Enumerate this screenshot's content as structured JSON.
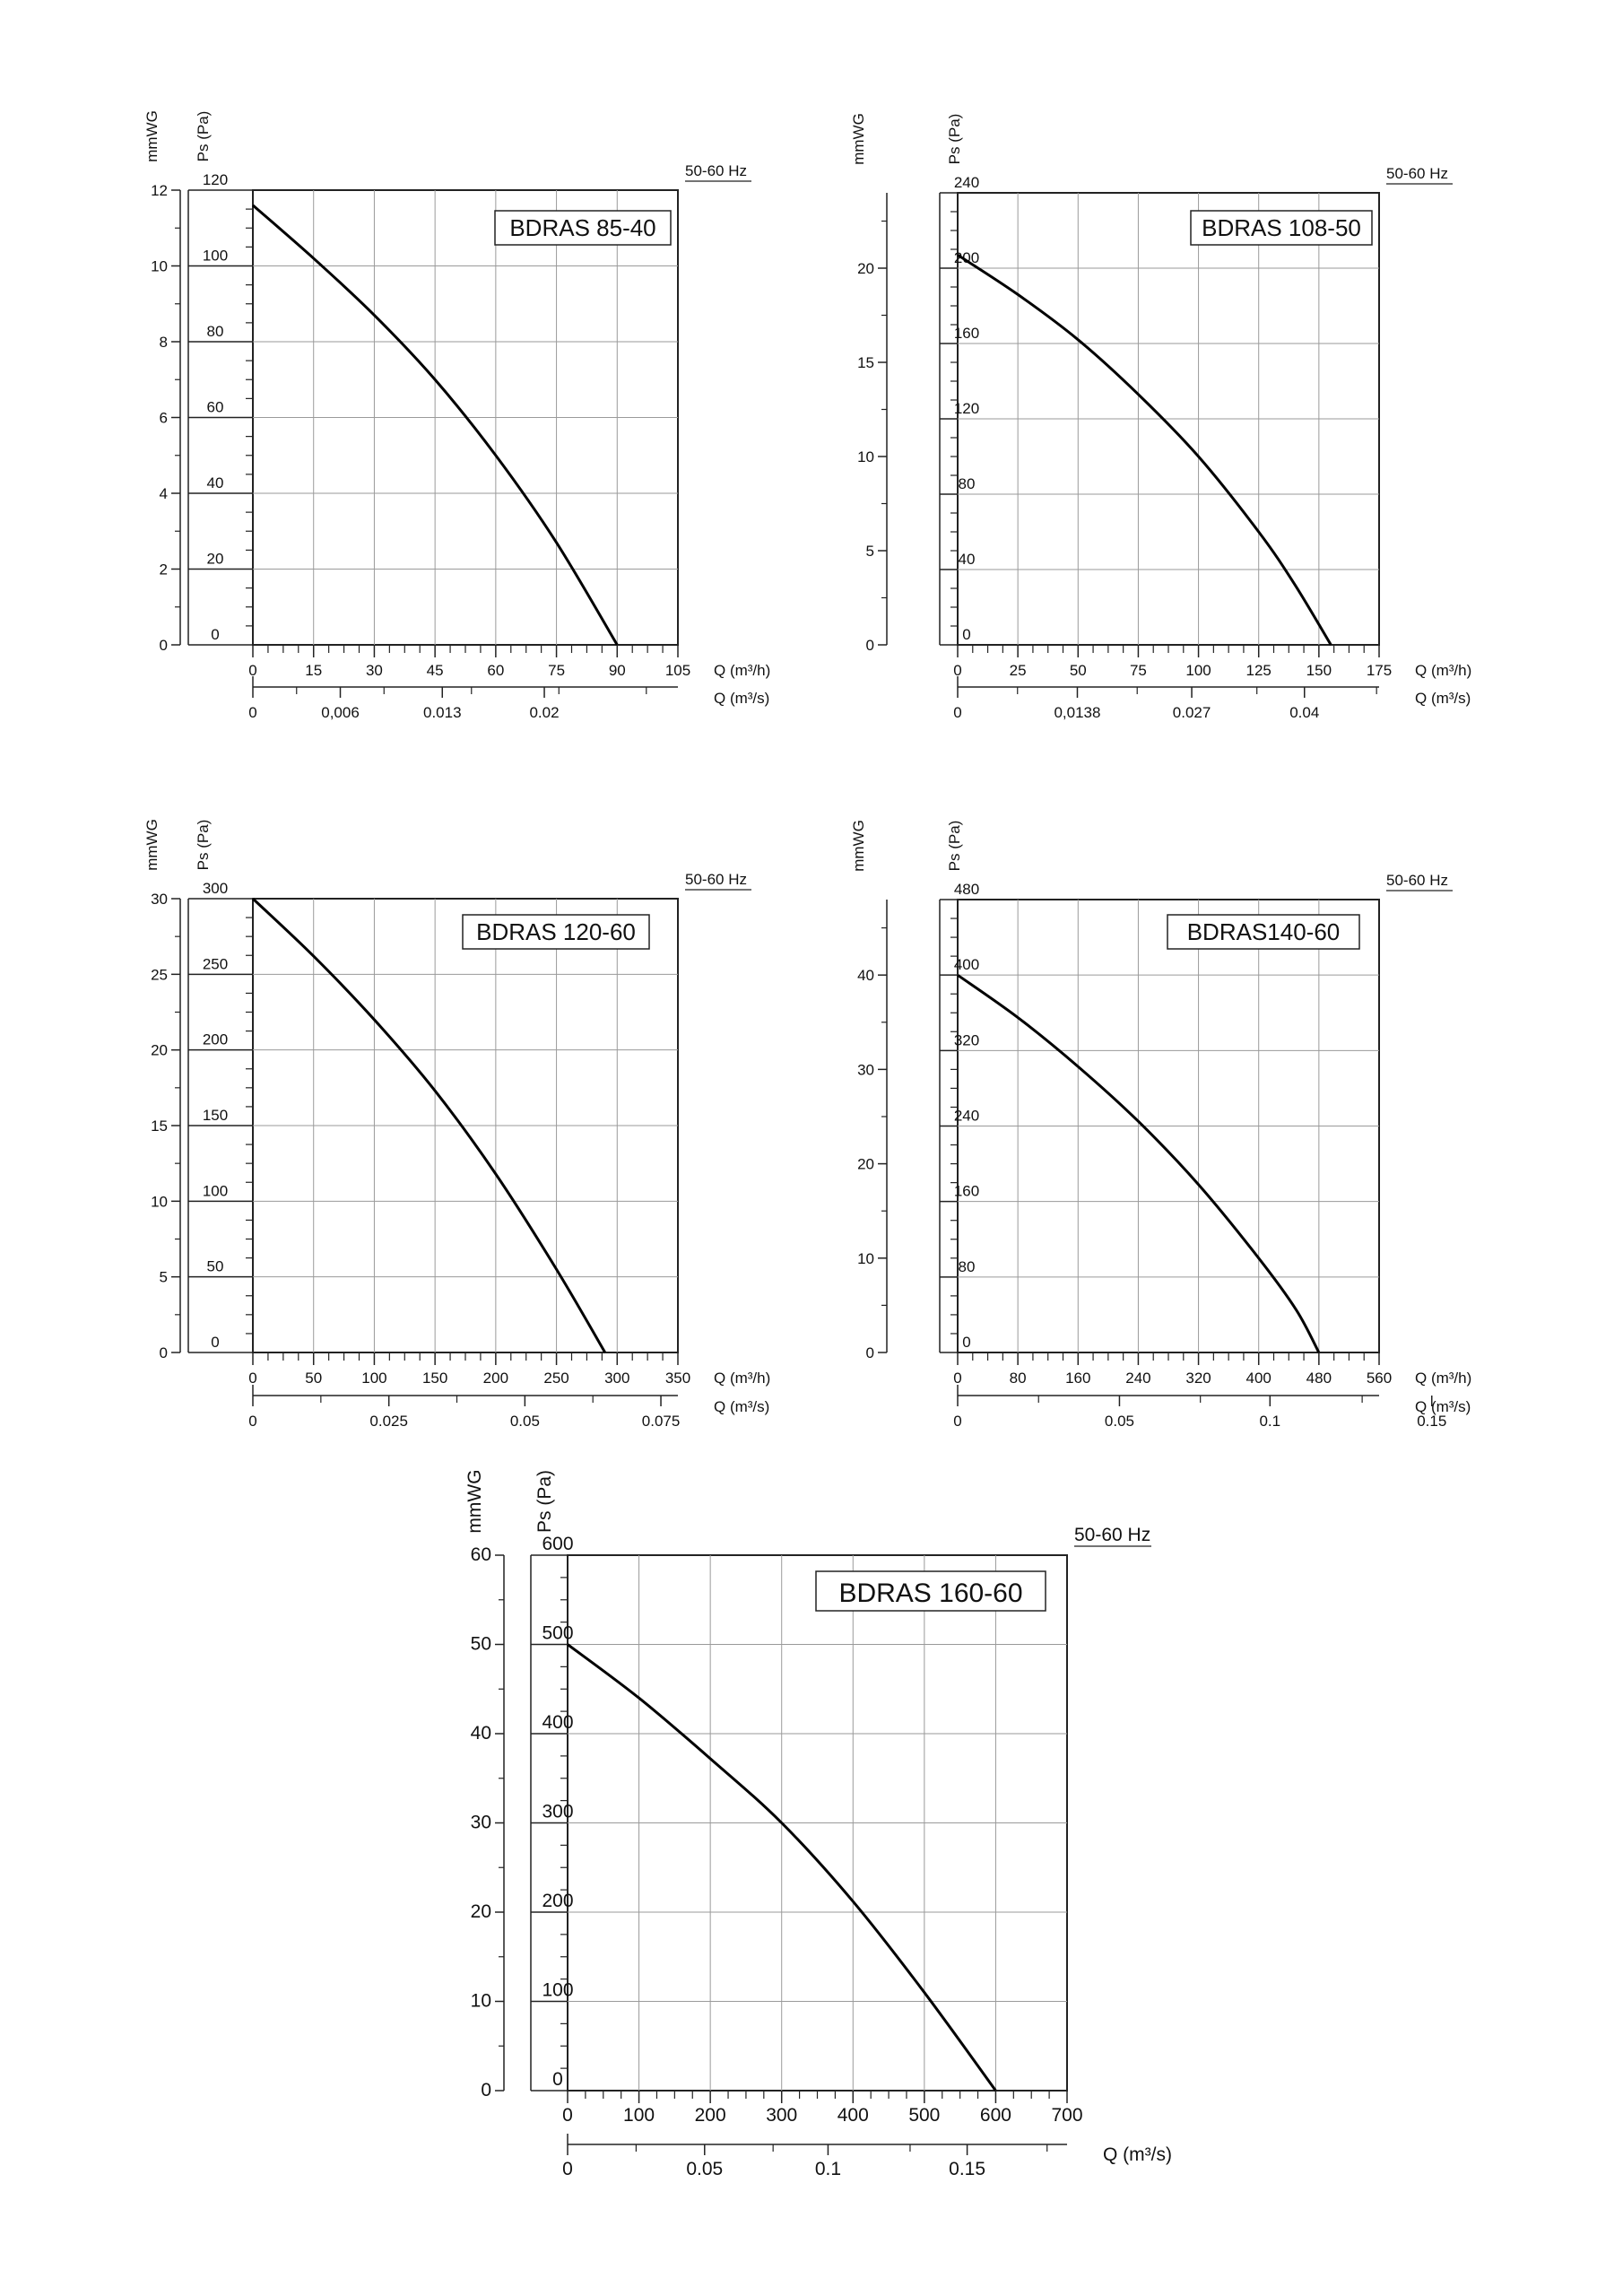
{
  "chart_data": [
    {
      "type": "line",
      "title": "BDRAS 85-40",
      "frequency_label": "50-60 Hz",
      "xlabel": "Q (m³/h)",
      "xlabel2": "Q (m³/s)",
      "ylabel": "Ps (Pa)",
      "ylabel2": "mmWG",
      "xlim": [
        0,
        105
      ],
      "ylim": [
        0,
        120
      ],
      "y2lim": [
        0,
        12
      ],
      "x_ticks": [
        "0",
        "15",
        "30",
        "45",
        "60",
        "75",
        "90",
        "105"
      ],
      "y_ticks": [
        "0",
        "20",
        "40",
        "60",
        "80",
        "100",
        "120"
      ],
      "y2_ticks": [
        "0",
        "2",
        "4",
        "6",
        "8",
        "10",
        "12"
      ],
      "x2_ticks": [
        {
          "q": 0,
          "label": "0"
        },
        {
          "q": 21.6,
          "label": "0,006"
        },
        {
          "q": 46.8,
          "label": "0.013"
        },
        {
          "q": 72,
          "label": "0.02"
        }
      ],
      "grid": true,
      "series": [
        {
          "x": [
            0,
            15,
            30,
            45,
            60,
            75,
            90
          ],
          "y": [
            116,
            102,
            87,
            70,
            50,
            27,
            0
          ]
        }
      ]
    },
    {
      "type": "line",
      "title": "BDRAS 108-50",
      "frequency_label": "50-60 Hz",
      "xlabel": "Q (m³/h)",
      "xlabel2": "Q (m³/s)",
      "ylabel": "Ps (Pa)",
      "ylabel2": "mmWG",
      "xlim": [
        0,
        175
      ],
      "ylim": [
        0,
        240
      ],
      "y2lim": [
        0,
        24
      ],
      "x_ticks": [
        "0",
        "25",
        "50",
        "75",
        "100",
        "125",
        "150",
        "175"
      ],
      "y_ticks": [
        "0",
        "40",
        "80",
        "120",
        "160",
        "200",
        "240"
      ],
      "y2_ticks": [
        "0",
        "5",
        "10",
        "15",
        "20"
      ],
      "x2_ticks": [
        {
          "q": 0,
          "label": "0"
        },
        {
          "q": 49.7,
          "label": "0,0138"
        },
        {
          "q": 97.2,
          "label": "0.027"
        },
        {
          "q": 144,
          "label": "0.04"
        }
      ],
      "grid": true,
      "series": [
        {
          "x": [
            0,
            25,
            50,
            75,
            100,
            125,
            140,
            155
          ],
          "y": [
            207,
            186,
            162,
            133,
            100,
            60,
            32,
            0
          ]
        }
      ]
    },
    {
      "type": "line",
      "title": "BDRAS 120-60",
      "frequency_label": "50-60 Hz",
      "xlabel": "Q (m³/h)",
      "xlabel2": "Q (m³/s)",
      "ylabel": "Ps (Pa)",
      "ylabel2": "mmWG",
      "xlim": [
        0,
        350
      ],
      "ylim": [
        0,
        300
      ],
      "y2lim": [
        0,
        30
      ],
      "x_ticks": [
        "0",
        "50",
        "100",
        "150",
        "200",
        "250",
        "300",
        "350"
      ],
      "y_ticks": [
        "0",
        "50",
        "100",
        "150",
        "200",
        "250",
        "300"
      ],
      "y2_ticks": [
        "0",
        "5",
        "10",
        "15",
        "20",
        "25",
        "30"
      ],
      "x2_ticks": [
        {
          "q": 0,
          "label": "0"
        },
        {
          "q": 112,
          "label": "0.025"
        },
        {
          "q": 224,
          "label": "0.05"
        },
        {
          "q": 336,
          "label": "0.075"
        }
      ],
      "grid": true,
      "series": [
        {
          "x": [
            0,
            50,
            100,
            150,
            200,
            250,
            290
          ],
          "y": [
            300,
            262,
            220,
            173,
            118,
            55,
            0
          ]
        }
      ]
    },
    {
      "type": "line",
      "title": "BDRAS140-60",
      "frequency_label": "50-60 Hz",
      "xlabel": "Q (m³/h)",
      "xlabel2": "Q (m³/s)",
      "ylabel": "Ps (Pa)",
      "ylabel2": "mmWG",
      "xlim": [
        0,
        560
      ],
      "ylim": [
        0,
        480
      ],
      "y2lim": [
        0,
        48
      ],
      "x_ticks": [
        "0",
        "80",
        "160",
        "240",
        "320",
        "400",
        "480",
        "560"
      ],
      "y_ticks": [
        "0",
        "80",
        "160",
        "240",
        "320",
        "400",
        "480"
      ],
      "y2_ticks": [
        "0",
        "10",
        "20",
        "30",
        "40"
      ],
      "x2_ticks": [
        {
          "q": 0,
          "label": "0"
        },
        {
          "q": 215,
          "label": "0.05"
        },
        {
          "q": 415,
          "label": "0.1"
        },
        {
          "q": 630,
          "label": "0.15"
        }
      ],
      "grid": true,
      "series": [
        {
          "x": [
            0,
            80,
            160,
            240,
            320,
            400,
            450,
            480
          ],
          "y": [
            400,
            355,
            303,
            245,
            178,
            100,
            45,
            0
          ]
        }
      ]
    },
    {
      "type": "line",
      "title": "BDRAS 160-60",
      "frequency_label": "50-60 Hz",
      "xlabel": "",
      "xlabel2": "Q (m³/s)",
      "ylabel": "Ps (Pa)",
      "ylabel2": "mmWG",
      "xlim": [
        0,
        700
      ],
      "ylim": [
        0,
        600
      ],
      "y2lim": [
        0,
        60
      ],
      "x_ticks": [
        "0",
        "100",
        "200",
        "300",
        "400",
        "500",
        "600",
        "700"
      ],
      "y_ticks": [
        "0",
        "100",
        "200",
        "300",
        "400",
        "500",
        "600"
      ],
      "y2_ticks": [
        "0",
        "10",
        "20",
        "30",
        "40",
        "50",
        "60"
      ],
      "x2_ticks": [
        {
          "q": 0,
          "label": "0"
        },
        {
          "q": 192,
          "label": "0.05"
        },
        {
          "q": 365,
          "label": "0.1"
        },
        {
          "q": 560,
          "label": "0.15"
        }
      ],
      "grid": true,
      "series": [
        {
          "x": [
            0,
            100,
            200,
            300,
            400,
            500,
            600
          ],
          "y": [
            500,
            440,
            372,
            300,
            212,
            110,
            0
          ]
        }
      ]
    }
  ]
}
